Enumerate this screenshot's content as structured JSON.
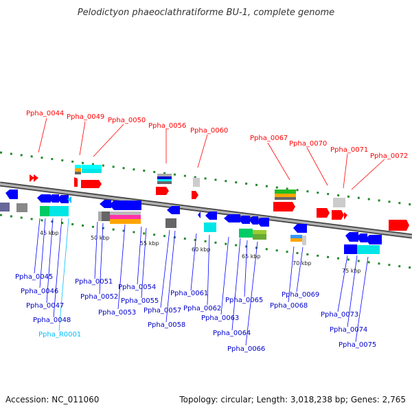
{
  "title": "Pelodictyon phaeoclathratiforme BU-1, complete genome",
  "footer": {
    "accession": "Accession: NC_011060",
    "summary": "Topology: circular; Length: 3,018,238 bp; Genes: 2,765"
  },
  "colors": {
    "forward_gene": "#ff0000",
    "reverse_gene": "#0000ff",
    "rna_gene": "#00bfff",
    "backbone": "#888888",
    "tick": "#22882a"
  },
  "scale_labels": [
    "45 kbp",
    "50 kbp",
    "55 kbp",
    "60 kbp",
    "65 kbp",
    "70 kbp",
    "75 kbp"
  ],
  "top_genes": [
    "Ppha_0044",
    "Ppha_0049",
    "Ppha_0050",
    "Ppha_0056",
    "Ppha_0060",
    "Ppha_0067",
    "Ppha_0070",
    "Ppha_0071",
    "Ppha_0072"
  ],
  "bottom_genes": [
    "Ppha_0045",
    "Ppha_0046",
    "Ppha_0047",
    "Ppha_0048",
    "Ppha_R0001",
    "Ppha_0051",
    "Ppha_0052",
    "Ppha_0053",
    "Ppha_0054",
    "Ppha_0055",
    "Ppha_0057",
    "Ppha_0058",
    "Ppha_0061",
    "Ppha_0062",
    "Ppha_0063",
    "Ppha_0064",
    "Ppha_0065",
    "Ppha_0066",
    "Ppha_0068",
    "Ppha_0069",
    "Ppha_0073",
    "Ppha_0074",
    "Ppha_0075"
  ]
}
